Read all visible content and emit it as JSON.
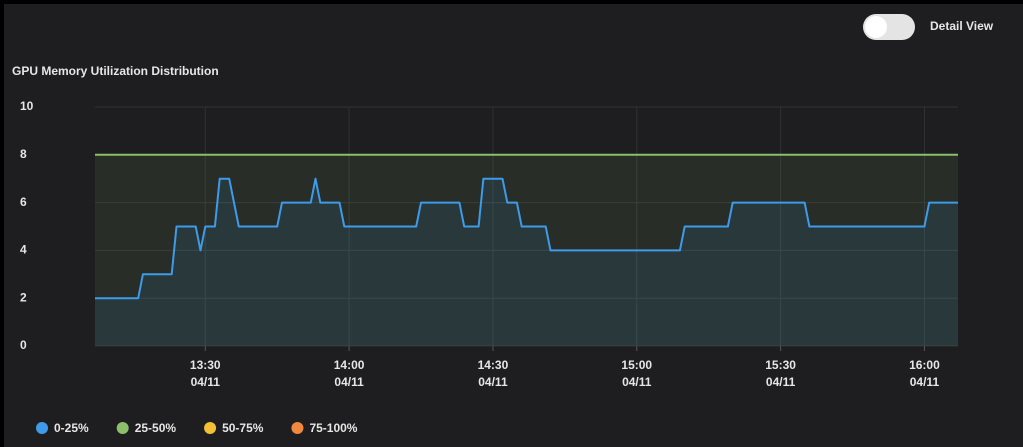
{
  "header": {
    "toggle_label": "Detail View",
    "toggle_on": false
  },
  "chart_data": {
    "type": "line",
    "title": "GPU Memory Utilization Distribution",
    "xlim": [
      "13:07",
      "16:07"
    ],
    "xticks": [
      {
        "time": "13:30",
        "date": "04/11"
      },
      {
        "time": "14:00",
        "date": "04/11"
      },
      {
        "time": "14:30",
        "date": "04/11"
      },
      {
        "time": "15:00",
        "date": "04/11"
      },
      {
        "time": "15:30",
        "date": "04/11"
      },
      {
        "time": "16:00",
        "date": "04/11"
      }
    ],
    "ylim": [
      0,
      10
    ],
    "yticks": [
      0,
      2,
      4,
      6,
      8,
      10
    ],
    "grid": true,
    "step": true,
    "series": [
      {
        "name": "0-25%",
        "color": "#3d9be9",
        "x": [
          "13:07",
          "13:16",
          "13:17",
          "13:23",
          "13:24",
          "13:28",
          "13:29",
          "13:30",
          "13:32",
          "13:33",
          "13:35",
          "13:37",
          "13:45",
          "13:46",
          "13:52",
          "13:53",
          "13:54",
          "13:58",
          "13:59",
          "14:14",
          "14:15",
          "14:23",
          "14:24",
          "14:27",
          "14:28",
          "14:32",
          "14:33",
          "14:35",
          "14:36",
          "14:41",
          "14:42",
          "15:09",
          "15:10",
          "15:19",
          "15:20",
          "15:35",
          "15:36",
          "16:00",
          "16:01",
          "16:07"
        ],
        "values": [
          2,
          2,
          3,
          3,
          5,
          5,
          4,
          5,
          5,
          7,
          7,
          5,
          5,
          6,
          6,
          7,
          6,
          6,
          5,
          5,
          6,
          6,
          5,
          5,
          7,
          7,
          6,
          6,
          5,
          5,
          4,
          4,
          5,
          5,
          6,
          6,
          5,
          5,
          6,
          6
        ]
      },
      {
        "name": "25-50%",
        "color": "#8cbf6a",
        "x": [
          "13:07",
          "16:07"
        ],
        "values": [
          8,
          8
        ]
      },
      {
        "name": "50-75%",
        "color": "#f2c037"
      },
      {
        "name": "75-100%",
        "color": "#f0883e"
      }
    ]
  }
}
